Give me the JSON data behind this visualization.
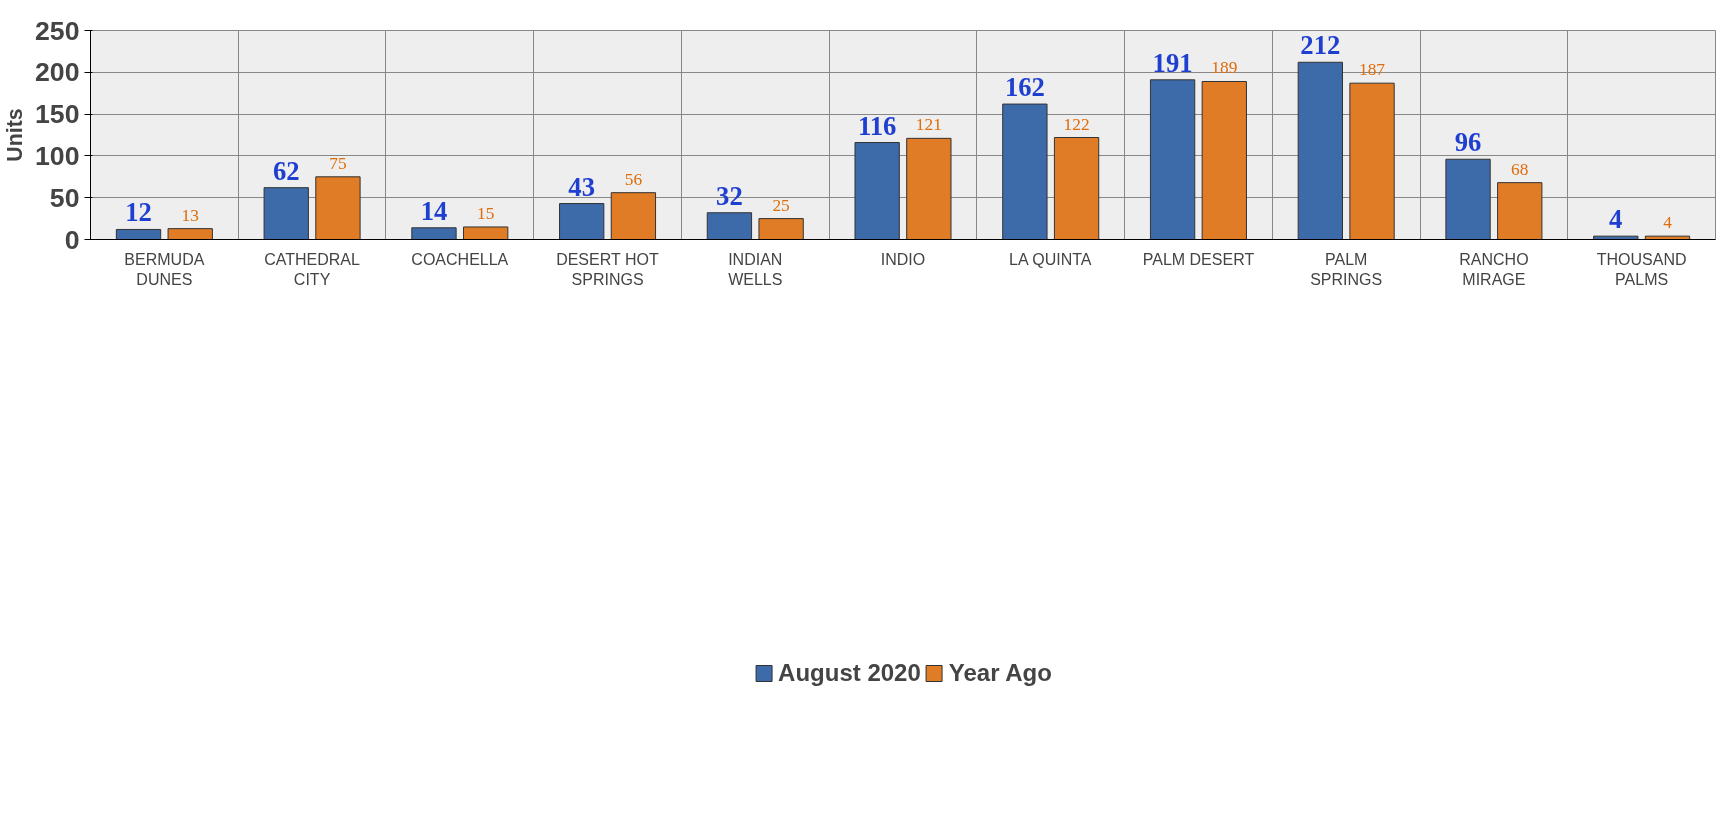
{
  "chart_data": {
    "type": "bar",
    "ylabel": "Units",
    "categories": [
      "BERMUDA DUNES",
      "CATHEDRAL CITY",
      "COACHELLA",
      "DESERT HOT SPRINGS",
      "INDIAN WELLS",
      "INDIO",
      "LA QUINTA",
      "PALM DESERT",
      "PALM SPRINGS",
      "RANCHO MIRAGE",
      "THOUSAND PALMS"
    ],
    "series": [
      {
        "name": "August 2020",
        "color": "#3d6aa8",
        "values": [
          12,
          62,
          14,
          43,
          32,
          116,
          162,
          191,
          212,
          96,
          4
        ]
      },
      {
        "name": "Year Ago",
        "color": "#e07b26",
        "values": [
          13,
          75,
          15,
          56,
          25,
          121,
          122,
          189,
          187,
          68,
          4
        ]
      }
    ],
    "ylim": [
      0,
      250
    ],
    "yticks": [
      0,
      50,
      100,
      150,
      200,
      250
    ],
    "grid": true,
    "legend": "bottom",
    "data_labels": true
  }
}
